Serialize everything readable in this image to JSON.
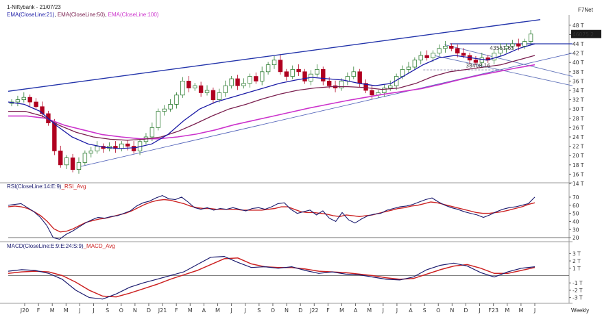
{
  "header": {
    "symbol_line": "1-Niftybank - 21/07/23",
    "ema21_label": "EMA(CloseLine:21)",
    "ema50_label": "EMA(CloseLine:50)",
    "ema100_label": "EMA(CloseLine:100)",
    "brand": "F7Net",
    "rsi_label": "RSI(CloseLine:14:E:9)",
    "rsi_avg_label": "_RSI_Avg",
    "macd_label": "MACD(CloseLine:E:9:E:24:S:9)",
    "macd_avg_label": "_MACD_Avg",
    "timeframe": "Weekly"
  },
  "colors": {
    "ema21": "#1a1aa6",
    "ema50": "#7a1f4f",
    "ema100": "#cc33cc",
    "candle_up": "#2e7d32",
    "candle_down": "#b00020",
    "rsi": "#1a1a6e",
    "rsi_avg": "#cc2222",
    "macd": "#1a1a6e",
    "macd_avg": "#cc2222",
    "channel": "#2233aa",
    "price_tag_bg": "#1a1a1a"
  },
  "annotations": {
    "last_price": "46075.2",
    "level_1": "43551.65",
    "level_2": "38408.16"
  },
  "chart_data": [
    {
      "type": "candlestick",
      "title": "1-Niftybank - 21/07/23",
      "y_unit": "thousand points",
      "y_ticks": [
        "48 T",
        "46 T",
        "44 T",
        "42 T",
        "40 T",
        "38 T",
        "36 T",
        "34 T",
        "32 T",
        "30 T",
        "28 T",
        "26 T",
        "24 T",
        "22 T",
        "20 T",
        "18 T",
        "16 T",
        "14 T"
      ],
      "ylim": [
        14,
        49
      ],
      "x_labels": [
        "J20",
        "F",
        "M",
        "M",
        "J",
        "J",
        "S",
        "O",
        "N",
        "D",
        "J21",
        "F",
        "M",
        "A",
        "M",
        "J",
        "J",
        "S",
        "O",
        "N",
        "D",
        "J22",
        "F",
        "M",
        "A",
        "M",
        "J",
        "J",
        "A",
        "S",
        "O",
        "N",
        "D",
        "J",
        "F23",
        "M",
        "M",
        "J"
      ],
      "close_approx": [
        31.5,
        32.0,
        32.5,
        31.5,
        30.5,
        29.0,
        27.0,
        21.0,
        18.0,
        19.5,
        17.0,
        18.5,
        20.5,
        21.0,
        22.0,
        21.5,
        22.0,
        21.5,
        22.5,
        22.0,
        21.0,
        23.0,
        24.0,
        26.0,
        29.5,
        30.0,
        31.0,
        33.0,
        36.0,
        34.5,
        35.0,
        33.5,
        34.0,
        32.0,
        33.5,
        35.0,
        36.5,
        35.0,
        35.5,
        37.0,
        36.0,
        38.0,
        39.5,
        40.5,
        38.0,
        37.0,
        38.5,
        38.0,
        36.0,
        37.5,
        38.5,
        36.0,
        35.0,
        34.5,
        36.0,
        37.0,
        38.0,
        35.5,
        34.0,
        33.0,
        33.5,
        34.5,
        35.0,
        37.0,
        38.5,
        39.0,
        40.5,
        41.5,
        41.0,
        42.0,
        43.0,
        43.5,
        43.0,
        42.0,
        41.5,
        40.5,
        40.0,
        41.0,
        40.5,
        42.0,
        43.0,
        43.5,
        44.0,
        43.5,
        44.5,
        46.1
      ],
      "ema21": [
        31.5,
        31.0,
        29.5,
        26.5,
        24.0,
        22.5,
        21.8,
        21.5,
        21.7,
        22.5,
        24.5,
        27.5,
        30.0,
        31.5,
        32.5,
        33.5,
        34.5,
        35.5,
        36.2,
        36.8,
        36.5,
        36.2,
        35.5,
        35.0,
        35.5,
        37.5,
        39.5,
        41.0,
        41.5,
        41.0,
        40.5,
        41.5,
        43.0,
        44.0
      ],
      "ema50": [
        29.5,
        29.5,
        28.5,
        26.5,
        25.0,
        24.0,
        23.5,
        23.3,
        23.5,
        24.0,
        25.2,
        26.8,
        28.5,
        30.0,
        31.0,
        32.2,
        33.2,
        34.0,
        34.5,
        34.8,
        34.8,
        34.6,
        34.2,
        34.5,
        35.5,
        37.0,
        38.0,
        38.5,
        39.0,
        39.5,
        40.5,
        41.5
      ],
      "ema100": [
        28.5,
        28.5,
        28.0,
        26.5,
        25.5,
        24.5,
        24.0,
        23.6,
        23.6,
        24.0,
        24.6,
        25.5,
        26.6,
        27.5,
        28.4,
        29.3,
        30.2,
        31.0,
        31.8,
        32.5,
        33.2,
        33.8,
        34.4,
        35.3,
        36.3,
        37.2,
        38.0,
        38.8,
        39.5
      ]
    },
    {
      "type": "line",
      "title": "RSI(CloseLine:14:E:9)",
      "y_ticks": [
        "70",
        "60",
        "50",
        "40",
        "30",
        "20"
      ],
      "ylim": [
        15,
        75
      ],
      "series": [
        {
          "name": "RSI",
          "values": [
            60,
            61,
            62,
            57,
            52,
            45,
            35,
            20,
            18,
            24,
            28,
            33,
            38,
            42,
            45,
            44,
            46,
            47,
            50,
            53,
            59,
            63,
            65,
            69,
            72,
            68,
            67,
            70,
            64,
            57,
            55,
            57,
            54,
            56,
            55,
            57,
            55,
            53,
            56,
            57,
            55,
            58,
            62,
            63,
            55,
            50,
            52,
            54,
            48,
            53,
            44,
            40,
            51,
            42,
            38,
            43,
            47,
            49,
            50,
            54,
            56,
            58,
            59,
            61,
            64,
            67,
            69,
            64,
            60,
            57,
            55,
            52,
            50,
            48,
            45,
            48,
            52,
            55,
            57,
            58,
            60,
            62,
            70
          ]
        },
        {
          "name": "Avg",
          "values": [
            58,
            59,
            58,
            56,
            52,
            47,
            40,
            31,
            27,
            28,
            31,
            35,
            39,
            41,
            43,
            44,
            46,
            48,
            50,
            53,
            57,
            61,
            64,
            66,
            67,
            66,
            64,
            62,
            59,
            57,
            56,
            56,
            55,
            55,
            55,
            55,
            54,
            54,
            54,
            54,
            55,
            56,
            58,
            58,
            55,
            52,
            51,
            51,
            50,
            49,
            47,
            46,
            48,
            47,
            46,
            47,
            48,
            50,
            52,
            54,
            56,
            57,
            59,
            60,
            62,
            64,
            63,
            61,
            59,
            57,
            55,
            53,
            51,
            50,
            50,
            51,
            52,
            54,
            56,
            58,
            61,
            63
          ]
        }
      ]
    },
    {
      "type": "line",
      "title": "MACD(CloseLine:E:9:E:24:S:9)",
      "y_ticks": [
        "3 T",
        "2 T",
        "1 T",
        "-1 T",
        "-2 T",
        "-3 T"
      ],
      "ylim": [
        -3.5,
        3.5
      ],
      "series": [
        {
          "name": "MACD",
          "values": [
            0.6,
            0.8,
            0.7,
            0.3,
            -0.5,
            -2.0,
            -3.0,
            -3.2,
            -2.5,
            -1.6,
            -1.0,
            -0.5,
            0.0,
            0.5,
            1.5,
            2.5,
            2.6,
            1.8,
            1.1,
            1.2,
            1.0,
            1.2,
            0.7,
            0.3,
            0.5,
            0.2,
            0.1,
            -0.2,
            -0.5,
            -0.6,
            -0.2,
            0.8,
            1.4,
            1.7,
            1.3,
            0.4,
            -0.2,
            0.5,
            1.0,
            1.2
          ]
        },
        {
          "name": "Avg",
          "values": [
            0.3,
            0.5,
            0.6,
            0.5,
            0.0,
            -0.9,
            -2.0,
            -2.8,
            -2.9,
            -2.4,
            -1.8,
            -1.2,
            -0.5,
            0.1,
            0.7,
            1.5,
            2.3,
            2.4,
            1.6,
            1.2,
            1.1,
            1.1,
            0.9,
            0.6,
            0.5,
            0.4,
            0.2,
            0.0,
            -0.3,
            -0.5,
            -0.4,
            0.2,
            0.8,
            1.3,
            1.5,
            1.0,
            0.3,
            0.3,
            0.7,
            1.1
          ]
        }
      ]
    }
  ]
}
